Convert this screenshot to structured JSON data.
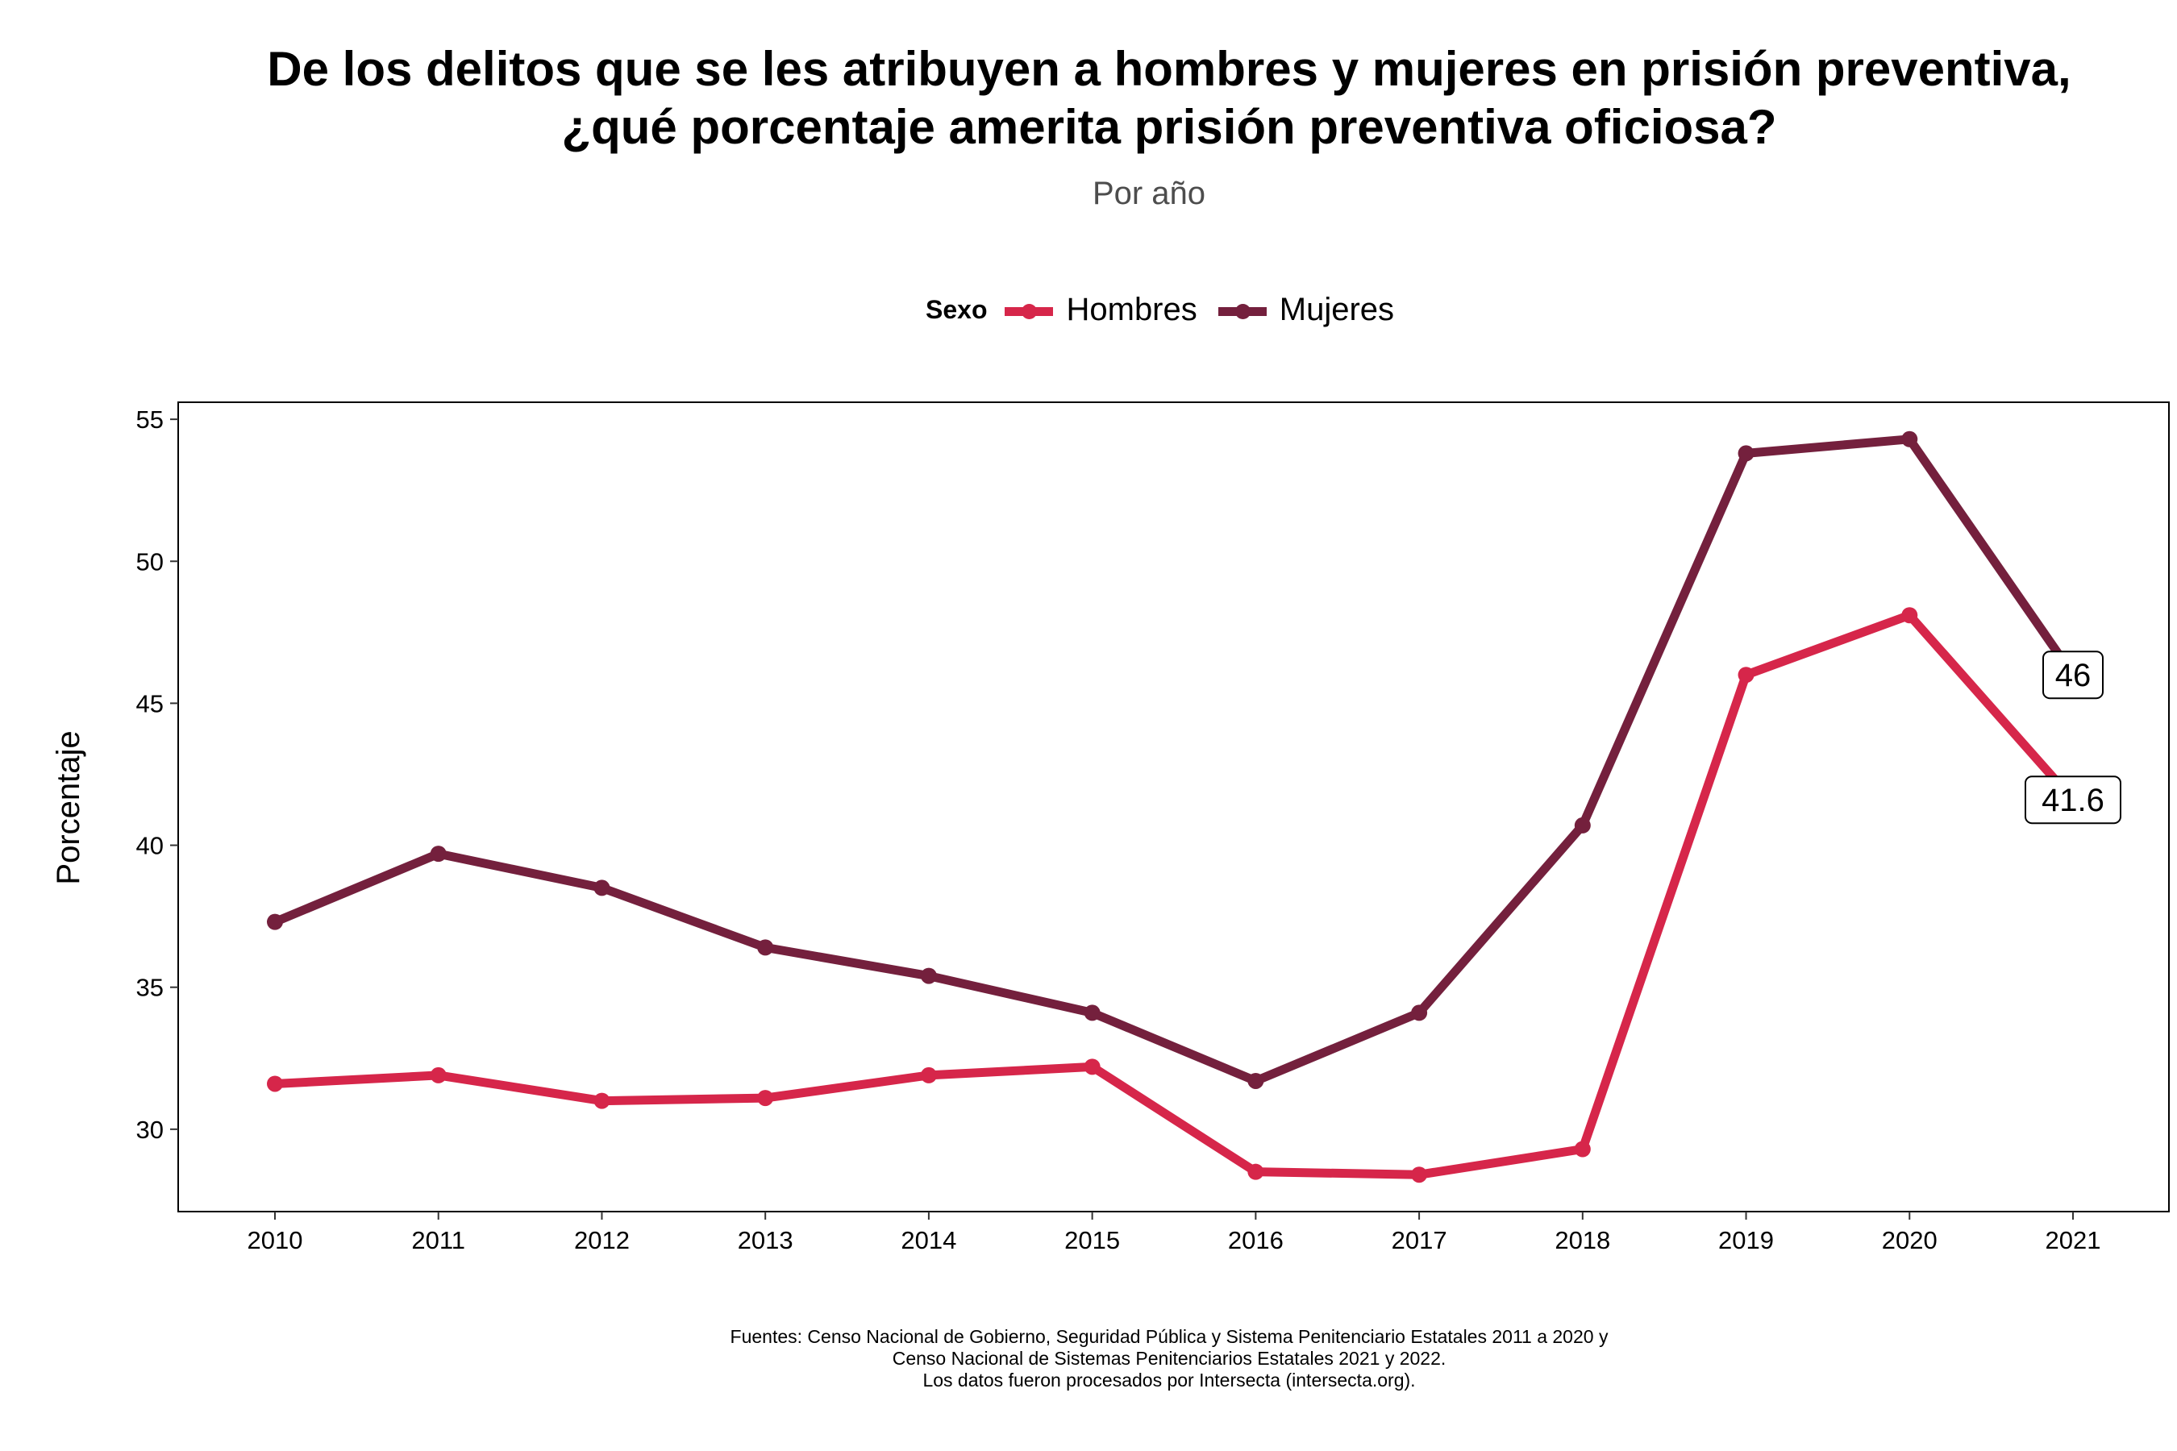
{
  "chart_data": {
    "type": "line",
    "title": [
      "De los delitos que se les atribuyen a hombres y mujeres en prisión preventiva,",
      "¿qué porcentaje amerita prisión preventiva oficiosa?"
    ],
    "subtitle": "Por año",
    "xlabel": "",
    "ylabel": "Porcentaje",
    "legend_title": "Sexo",
    "legend_position": "top",
    "x": [
      "2010",
      "2011",
      "2012",
      "2013",
      "2014",
      "2015",
      "2016",
      "2017",
      "2018",
      "2019",
      "2020",
      "2021"
    ],
    "ylim": [
      27.1,
      55.6
    ],
    "yticks": [
      30,
      35,
      40,
      45,
      50,
      55
    ],
    "grid": false,
    "series": [
      {
        "name": "Hombres",
        "color": "#d6264a",
        "values": [
          31.6,
          31.9,
          31.0,
          31.1,
          31.9,
          32.2,
          28.5,
          28.4,
          29.3,
          46.0,
          48.1,
          41.6
        ],
        "end_label": "41.6"
      },
      {
        "name": "Mujeres",
        "color": "#74203d",
        "values": [
          37.3,
          39.7,
          38.5,
          36.4,
          35.4,
          34.1,
          31.7,
          34.1,
          40.7,
          53.8,
          54.3,
          46.0
        ],
        "end_label": "46"
      }
    ],
    "footer": [
      "Fuentes: Censo Nacional de Gobierno, Seguridad Pública y Sistema Penitenciario Estatales 2011 a 2020 y",
      "Censo Nacional de Sistemas Penitenciarios Estatales 2021 y 2022.",
      "Los datos fueron procesados por Intersecta (intersecta.org)."
    ]
  }
}
